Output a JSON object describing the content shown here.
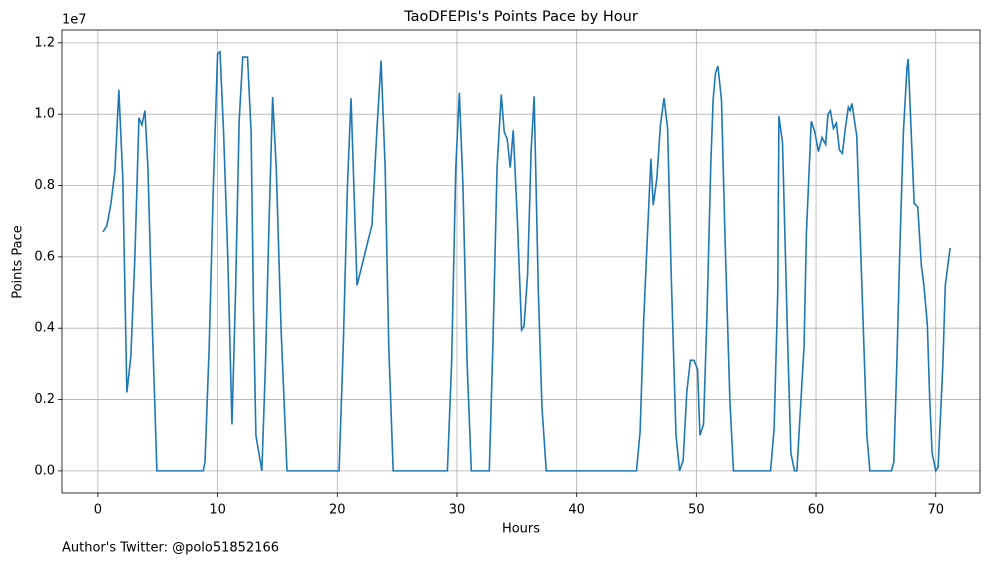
{
  "chart_data": {
    "type": "line",
    "title": "TaoDFEPIs's Points Pace by Hour",
    "xlabel": "Hours",
    "ylabel": "Points Pace",
    "offset_label": "1e7",
    "footnote": "Author's Twitter: @polo51852166",
    "x": [
      0.42,
      0.75,
      1.09,
      1.42,
      1.75,
      2.08,
      2.42,
      2.75,
      3.09,
      3.43,
      3.68,
      3.93,
      4.18,
      4.55,
      4.93,
      8.8,
      8.95,
      9.3,
      9.65,
      10.0,
      10.2,
      10.5,
      10.85,
      11.2,
      11.5,
      11.8,
      12.1,
      12.5,
      12.8,
      13.0,
      13.2,
      13.7,
      14.0,
      14.3,
      14.6,
      14.9,
      15.3,
      15.8,
      20.15,
      20.5,
      20.85,
      21.15,
      21.65,
      22.9,
      23.3,
      23.66,
      24.0,
      24.3,
      24.67,
      29.2,
      29.55,
      29.9,
      30.2,
      30.5,
      30.85,
      31.2,
      32.7,
      33.0,
      33.35,
      33.7,
      33.95,
      34.2,
      34.45,
      34.7,
      35.05,
      35.4,
      35.6,
      35.9,
      36.2,
      36.45,
      36.8,
      37.1,
      37.46,
      45.0,
      45.3,
      45.6,
      45.9,
      46.2,
      46.4,
      46.7,
      47.0,
      47.3,
      47.6,
      47.9,
      48.3,
      48.6,
      48.9,
      49.2,
      49.5,
      49.8,
      50.1,
      50.3,
      50.6,
      50.9,
      51.2,
      51.4,
      51.6,
      51.8,
      52.1,
      52.4,
      52.8,
      53.1,
      56.2,
      56.5,
      56.8,
      56.9,
      57.2,
      57.6,
      57.9,
      58.2,
      58.4,
      59.0,
      59.2,
      59.6,
      59.9,
      60.2,
      60.5,
      60.8,
      61.0,
      61.2,
      61.45,
      61.7,
      61.95,
      62.2,
      62.45,
      62.7,
      62.85,
      63.0,
      63.4,
      63.7,
      64.0,
      64.25,
      64.5,
      66.3,
      66.5,
      66.75,
      67.0,
      67.3,
      67.6,
      67.7,
      67.95,
      68.2,
      68.5,
      68.8,
      69.0,
      69.3,
      69.5,
      69.7,
      70.0,
      70.2,
      70.6,
      70.8,
      71.2
    ],
    "series": [
      {
        "color": "#1f77b4",
        "values": [
          6700000,
          6870000,
          7500000,
          8400000,
          10680000,
          8200000,
          2200000,
          3200000,
          6000000,
          9900000,
          9700000,
          10100000,
          8500000,
          4000000,
          0,
          0,
          250000,
          3500000,
          8000000,
          11700000,
          11750000,
          9500000,
          6000000,
          1300000,
          5000000,
          9800000,
          11600000,
          11600000,
          9500000,
          4500000,
          1000000,
          0,
          3000000,
          7000000,
          10480000,
          8500000,
          4000000,
          0,
          0,
          3500000,
          8000000,
          10450000,
          5200000,
          6900000,
          9500000,
          11500000,
          8500000,
          3500000,
          0,
          0,
          3000000,
          8500000,
          10600000,
          8000000,
          3000000,
          0,
          0,
          3500000,
          8500000,
          10550000,
          9500000,
          9300000,
          8500000,
          9550000,
          7000000,
          3950000,
          4050000,
          5500000,
          9000000,
          10500000,
          5000000,
          1800000,
          0,
          0,
          1100000,
          4200000,
          6500000,
          8750000,
          7450000,
          8200000,
          9700000,
          10450000,
          9600000,
          5500000,
          1000000,
          0,
          300000,
          2200000,
          3100000,
          3100000,
          2850000,
          1000000,
          1300000,
          4500000,
          8500000,
          10400000,
          11150000,
          11350000,
          10400000,
          6500000,
          2000000,
          0,
          0,
          1200000,
          5000000,
          9950000,
          9200000,
          4000000,
          500000,
          0,
          0,
          3500000,
          6700000,
          9800000,
          9500000,
          8950000,
          9350000,
          9150000,
          10000000,
          10100000,
          9600000,
          9750000,
          9000000,
          8900000,
          9600000,
          10200000,
          10100000,
          10300000,
          9400000,
          6500000,
          3500000,
          1000000,
          0,
          0,
          250000,
          3000000,
          6200000,
          9500000,
          11300000,
          11550000,
          9500000,
          7500000,
          7400000,
          5750000,
          5250000,
          4100000,
          2000000,
          500000,
          0,
          100000,
          3000000,
          5200000,
          6250000
        ]
      }
    ],
    "xlim": [
      -3.0,
      73.7
    ],
    "xticks": [
      0,
      10,
      20,
      30,
      40,
      50,
      60,
      70
    ],
    "ylim": [
      -620000,
      12360000
    ],
    "yticks": [
      {
        "value": 0,
        "label": "0.0"
      },
      {
        "value": 2000000,
        "label": "0.2"
      },
      {
        "value": 4000000,
        "label": "0.4"
      },
      {
        "value": 6000000,
        "label": "0.6"
      },
      {
        "value": 8000000,
        "label": "0.8"
      },
      {
        "value": 10000000,
        "label": "1.0"
      },
      {
        "value": 12000000,
        "label": "1.2"
      }
    ],
    "grid": true
  }
}
